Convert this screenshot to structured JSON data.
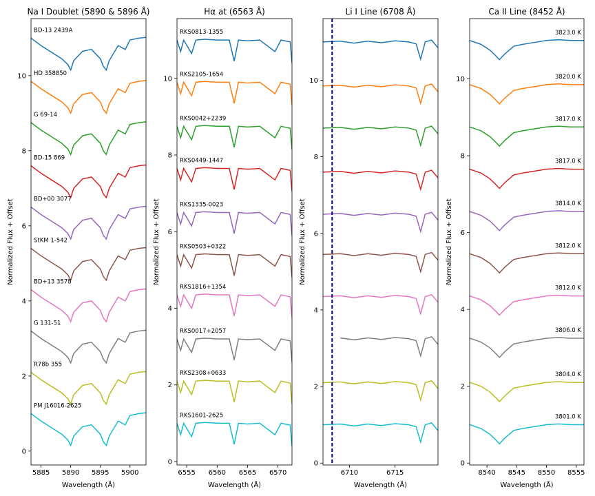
{
  "chart_data": [
    {
      "type": "line",
      "title": "Na I Doublet (5890 & 5896 Å)",
      "x_label": "Wavelength (Å)",
      "y_label": "Normalized Flux + Offset",
      "xlim": [
        5883.3,
        5902.7
      ],
      "xticks": [
        5885,
        5890,
        5895,
        5900
      ],
      "ylim": [
        -0.37,
        11.52
      ],
      "yticks": [
        0,
        2,
        4,
        6,
        8,
        10
      ],
      "label_position": "left",
      "x": [
        5883.3,
        5885,
        5887,
        5888.5,
        5889.5,
        5890,
        5890.5,
        5892,
        5893.5,
        5895,
        5895.5,
        5896,
        5896.5,
        5898,
        5899.2,
        5900,
        5901.5,
        5902.7
      ],
      "series": [
        {
          "name": "BD-13 2439A",
          "color": "#1f77b4",
          "values": [
            11.0,
            10.8,
            10.6,
            10.45,
            10.3,
            10.15,
            10.4,
            10.65,
            10.7,
            10.45,
            10.25,
            10.15,
            10.4,
            10.8,
            10.7,
            10.95,
            11.0,
            11.02
          ]
        },
        {
          "name": "HD 358850",
          "color": "#ff7f0e",
          "values": [
            9.85,
            9.65,
            9.45,
            9.3,
            9.15,
            9.0,
            9.25,
            9.5,
            9.55,
            9.3,
            9.1,
            9.0,
            9.25,
            9.65,
            9.55,
            9.8,
            9.85,
            9.87
          ]
        },
        {
          "name": "G 69-14",
          "color": "#2ca02c",
          "values": [
            8.75,
            8.55,
            8.35,
            8.2,
            8.05,
            7.9,
            8.15,
            8.4,
            8.45,
            8.2,
            8.0,
            7.9,
            8.15,
            8.55,
            8.45,
            8.7,
            8.75,
            8.77
          ]
        },
        {
          "name": "BD-15 869",
          "color": "#d62728",
          "values": [
            7.6,
            7.4,
            7.2,
            7.05,
            6.9,
            6.75,
            7.0,
            7.25,
            7.3,
            7.05,
            6.85,
            6.75,
            7.0,
            7.4,
            7.3,
            7.55,
            7.6,
            7.62
          ]
        },
        {
          "name": "BD+00 3077",
          "color": "#9467bd",
          "values": [
            6.5,
            6.3,
            6.1,
            5.95,
            5.8,
            5.65,
            5.9,
            6.15,
            6.2,
            5.95,
            5.75,
            5.65,
            5.9,
            6.3,
            6.2,
            6.45,
            6.5,
            6.52
          ]
        },
        {
          "name": "StKM 1-542",
          "color": "#8c564b",
          "values": [
            5.4,
            5.2,
            5.0,
            4.85,
            4.7,
            4.55,
            4.8,
            5.05,
            5.1,
            4.85,
            4.65,
            4.55,
            4.8,
            5.2,
            5.1,
            5.35,
            5.4,
            5.42
          ]
        },
        {
          "name": "BD+13 3578",
          "color": "#e377c2",
          "values": [
            4.3,
            4.1,
            3.9,
            3.75,
            3.6,
            3.45,
            3.7,
            3.95,
            4.0,
            3.75,
            3.55,
            3.45,
            3.7,
            4.1,
            4.0,
            4.25,
            4.3,
            4.32
          ]
        },
        {
          "name": "G 131-51",
          "color": "#7f7f7f",
          "values": [
            3.2,
            3.0,
            2.8,
            2.65,
            2.5,
            2.35,
            2.6,
            2.85,
            2.9,
            2.65,
            2.45,
            2.35,
            2.6,
            3.0,
            2.9,
            3.15,
            3.2,
            3.22
          ]
        },
        {
          "name": "R78b 355",
          "color": "#bcbd22",
          "values": [
            2.1,
            1.9,
            1.7,
            1.55,
            1.4,
            1.25,
            1.5,
            1.75,
            1.8,
            1.55,
            1.35,
            1.25,
            1.5,
            1.9,
            1.8,
            2.05,
            2.1,
            2.12
          ]
        },
        {
          "name": "PM J16016-2625",
          "color": "#17becf",
          "values": [
            1.0,
            0.8,
            0.6,
            0.45,
            0.3,
            0.15,
            0.4,
            0.65,
            0.7,
            0.45,
            0.25,
            0.15,
            0.4,
            0.8,
            0.7,
            0.95,
            1.0,
            1.02
          ]
        }
      ]
    },
    {
      "type": "line",
      "title": "Hα at (6563 Å)",
      "x_label": "Wavelength (Å)",
      "y_label": "Normalized Flux + Offset",
      "xlim": [
        6553.4,
        6572.3
      ],
      "xticks": [
        6555,
        6560,
        6565,
        6570
      ],
      "ylim": [
        -0.09,
        11.56
      ],
      "yticks": [
        0,
        2,
        4,
        6,
        8,
        10
      ],
      "label_position": "left",
      "x": [
        6553.4,
        6554.0,
        6554.5,
        6555.8,
        6556.5,
        6558,
        6560,
        6562,
        6562.8,
        6563.5,
        6565,
        6567,
        6569.5,
        6570.5,
        6572,
        6572.3
      ],
      "series": [
        {
          "name": "RKS0813-1355",
          "color": "#1f77b4",
          "values": [
            11.0,
            10.7,
            11.0,
            10.65,
            11.0,
            11.02,
            11.0,
            11.0,
            10.45,
            11.0,
            10.98,
            11.0,
            10.7,
            11.0,
            10.95,
            10.4
          ]
        },
        {
          "name": "RKS2105-1654",
          "color": "#ff7f0e",
          "values": [
            9.9,
            9.6,
            9.9,
            9.55,
            9.9,
            9.92,
            9.9,
            9.9,
            9.35,
            9.9,
            9.88,
            9.9,
            9.6,
            9.9,
            9.85,
            9.3
          ]
        },
        {
          "name": "RKS0042+2239",
          "color": "#2ca02c",
          "values": [
            8.75,
            8.45,
            8.75,
            8.4,
            8.75,
            8.77,
            8.75,
            8.75,
            8.2,
            8.75,
            8.73,
            8.75,
            8.45,
            8.75,
            8.7,
            8.15
          ]
        },
        {
          "name": "RKS0449-1447",
          "color": "#d62728",
          "values": [
            7.65,
            7.35,
            7.65,
            7.3,
            7.65,
            7.67,
            7.65,
            7.65,
            7.1,
            7.65,
            7.63,
            7.65,
            7.35,
            7.65,
            7.6,
            7.05
          ]
        },
        {
          "name": "RKS1335-0023",
          "color": "#9467bd",
          "values": [
            6.5,
            6.2,
            6.5,
            6.15,
            6.5,
            6.52,
            6.5,
            6.5,
            5.95,
            6.5,
            6.48,
            6.5,
            6.2,
            6.5,
            6.45,
            5.9
          ]
        },
        {
          "name": "RKS0503+0322",
          "color": "#8c564b",
          "values": [
            5.4,
            5.1,
            5.4,
            5.05,
            5.4,
            5.42,
            5.4,
            5.4,
            4.85,
            5.4,
            5.38,
            5.4,
            5.1,
            5.4,
            5.35,
            4.8
          ]
        },
        {
          "name": "RKS1816+1354",
          "color": "#e377c2",
          "values": [
            4.35,
            4.05,
            4.35,
            4.0,
            4.35,
            4.37,
            4.35,
            4.35,
            3.8,
            4.35,
            4.33,
            4.35,
            4.05,
            4.35,
            4.3,
            3.75
          ]
        },
        {
          "name": "RKS0017+2057",
          "color": "#7f7f7f",
          "values": [
            3.2,
            2.9,
            3.2,
            2.85,
            3.2,
            3.22,
            3.2,
            3.2,
            2.65,
            3.2,
            3.18,
            3.2,
            2.9,
            3.2,
            3.15,
            2.6
          ]
        },
        {
          "name": "RKS2308+0633",
          "color": "#bcbd22",
          "values": [
            2.1,
            1.8,
            2.1,
            1.75,
            2.1,
            2.12,
            2.1,
            2.1,
            1.55,
            2.1,
            2.08,
            2.1,
            1.8,
            2.1,
            2.05,
            1.5
          ]
        },
        {
          "name": "RKS1601-2625",
          "color": "#17becf",
          "values": [
            1.0,
            0.7,
            1.0,
            0.65,
            1.0,
            1.02,
            1.0,
            1.0,
            0.45,
            1.0,
            0.98,
            1.0,
            0.7,
            1.0,
            0.95,
            0.4
          ]
        }
      ]
    },
    {
      "type": "line",
      "title": "Li I Line (6708 Å)",
      "x_label": "Wavelength (Å)",
      "y_label": "Normalized Flux + Offset",
      "xlim": [
        6707.1,
        6719.7
      ],
      "xticks": [
        6710,
        6715
      ],
      "ylim": [
        -0.05,
        11.61
      ],
      "yticks": [
        0,
        2,
        4,
        6,
        8,
        10
      ],
      "vline": {
        "x": 6708.1,
        "color": "#00008b",
        "dashed": true
      },
      "x": [
        6707.1,
        6709,
        6710.5,
        6712,
        6713.5,
        6715,
        6716.5,
        6717.3,
        6717.8,
        6718.3,
        6719,
        6719.7
      ],
      "series": [
        {
          "color": "#1f77b4",
          "values": [
            11.0,
            11.02,
            10.97,
            11.02,
            10.98,
            11.03,
            11.0,
            10.95,
            10.55,
            11.0,
            11.05,
            10.85
          ]
        },
        {
          "color": "#ff7f0e",
          "values": [
            9.85,
            9.87,
            9.82,
            9.87,
            9.83,
            9.88,
            9.85,
            9.8,
            9.4,
            9.85,
            9.9,
            9.7
          ]
        },
        {
          "color": "#2ca02c",
          "values": [
            8.75,
            8.77,
            8.72,
            8.77,
            8.73,
            8.78,
            8.75,
            8.7,
            8.3,
            8.75,
            8.8,
            8.6
          ]
        },
        {
          "color": "#d62728",
          "values": [
            7.6,
            7.62,
            7.57,
            7.62,
            7.58,
            7.63,
            7.6,
            7.55,
            7.15,
            7.6,
            7.65,
            7.45
          ]
        },
        {
          "color": "#9467bd",
          "values": [
            6.5,
            6.52,
            6.47,
            6.52,
            6.48,
            6.53,
            6.5,
            6.45,
            6.05,
            6.5,
            6.55,
            6.35
          ]
        },
        {
          "color": "#8c564b",
          "values": [
            5.45,
            5.47,
            5.42,
            5.47,
            5.43,
            5.48,
            5.45,
            5.4,
            5.0,
            5.45,
            5.5,
            5.3
          ]
        },
        {
          "color": "#e377c2",
          "values": [
            4.35,
            4.37,
            4.32,
            4.37,
            4.33,
            4.38,
            4.35,
            4.3,
            3.9,
            4.35,
            4.4,
            4.2
          ]
        },
        {
          "color": "#7f7f7f",
          "values": [
            null,
            3.27,
            3.22,
            3.27,
            3.23,
            3.28,
            3.25,
            3.2,
            2.8,
            3.25,
            3.3,
            3.1
          ]
        },
        {
          "color": "#bcbd22",
          "values": [
            2.1,
            2.12,
            2.07,
            2.12,
            2.08,
            2.13,
            2.1,
            2.05,
            1.65,
            2.1,
            2.15,
            1.95
          ]
        },
        {
          "color": "#17becf",
          "values": [
            1.0,
            1.02,
            0.97,
            1.02,
            0.98,
            1.03,
            1.0,
            0.95,
            0.55,
            1.0,
            1.05,
            0.85
          ]
        }
      ]
    },
    {
      "type": "line",
      "title": "Ca II Line (8452 Å)",
      "x_label": "Wavelength (Å)",
      "y_label": "Normalized Flux + Offset",
      "xlim": [
        8537.1,
        8556.3
      ],
      "xticks": [
        8540,
        8545,
        8550,
        8555
      ],
      "ylim": [
        -0.05,
        11.57
      ],
      "yticks": [
        0,
        2,
        4,
        6,
        8,
        10
      ],
      "label_position": "right",
      "x": [
        8537.1,
        8539,
        8540.5,
        8541.5,
        8542.1,
        8543,
        8544.5,
        8546,
        8548,
        8550,
        8552,
        8554,
        8556.3
      ],
      "series": [
        {
          "name": "3823.0 K",
          "color": "#1f77b4",
          "values": [
            11.0,
            10.9,
            10.75,
            10.6,
            10.5,
            10.65,
            10.85,
            10.9,
            10.95,
            11.0,
            11.02,
            11.0,
            11.0
          ]
        },
        {
          "name": "3820.0 K",
          "color": "#ff7f0e",
          "values": [
            9.85,
            9.75,
            9.6,
            9.45,
            9.35,
            9.5,
            9.7,
            9.75,
            9.8,
            9.85,
            9.87,
            9.85,
            9.85
          ]
        },
        {
          "name": "3817.0 K",
          "color": "#2ca02c",
          "values": [
            8.75,
            8.65,
            8.5,
            8.35,
            8.25,
            8.4,
            8.6,
            8.65,
            8.7,
            8.75,
            8.77,
            8.75,
            8.75
          ]
        },
        {
          "name": "3817.0 K",
          "color": "#d62728",
          "values": [
            7.65,
            7.55,
            7.4,
            7.25,
            7.15,
            7.3,
            7.5,
            7.55,
            7.6,
            7.65,
            7.67,
            7.65,
            7.65
          ]
        },
        {
          "name": "3814.0 K",
          "color": "#9467bd",
          "values": [
            6.55,
            6.45,
            6.3,
            6.15,
            6.05,
            6.2,
            6.4,
            6.45,
            6.5,
            6.55,
            6.57,
            6.55,
            6.55
          ]
        },
        {
          "name": "3812.0 K",
          "color": "#8c564b",
          "values": [
            5.45,
            5.35,
            5.2,
            5.05,
            4.95,
            5.1,
            5.3,
            5.35,
            5.4,
            5.45,
            5.47,
            5.45,
            5.45
          ]
        },
        {
          "name": "3812.0 K",
          "color": "#e377c2",
          "values": [
            4.35,
            4.25,
            4.1,
            3.95,
            3.85,
            4.0,
            4.2,
            4.25,
            4.3,
            4.35,
            4.37,
            4.35,
            4.35
          ]
        },
        {
          "name": "3806.0 K",
          "color": "#7f7f7f",
          "values": [
            3.25,
            3.15,
            3.0,
            2.85,
            2.75,
            2.9,
            3.1,
            3.15,
            3.2,
            3.25,
            3.27,
            3.25,
            3.25
          ]
        },
        {
          "name": "3804.0 K",
          "color": "#bcbd22",
          "values": [
            2.1,
            2.0,
            1.85,
            1.7,
            1.6,
            1.75,
            1.95,
            2.0,
            2.05,
            2.1,
            2.12,
            2.1,
            2.1
          ]
        },
        {
          "name": "3801.0 K",
          "color": "#17becf",
          "values": [
            1.0,
            0.9,
            0.75,
            0.6,
            0.5,
            0.65,
            0.85,
            0.9,
            0.95,
            1.0,
            1.02,
            1.0,
            1.0
          ]
        }
      ]
    }
  ]
}
